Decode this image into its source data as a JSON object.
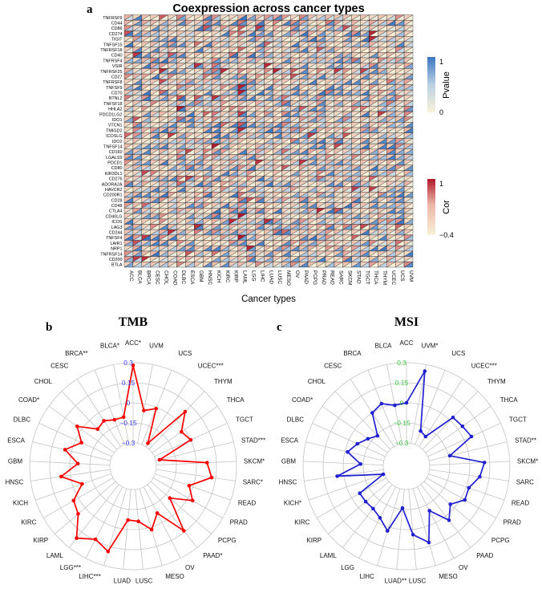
{
  "panels": {
    "a": "a",
    "b": "b",
    "c": "c"
  },
  "chart_data": [
    {
      "type": "heatmap",
      "panel": "a",
      "title": "Coexpression across cancer types",
      "xlabel": "Cancer types",
      "cell_style": "diagonal-split: upper-left triangle = Cor (red scale), lower-right triangle = Pvalue (blue scale)",
      "genes": [
        "TNFRSF9",
        "CD44",
        "CD86",
        "CD274",
        "TIGIT",
        "TNFSF15",
        "TNFRSF18",
        "CD40",
        "TNFRSF4",
        "VSIR",
        "TNFRSF25",
        "CD27",
        "TNFRSF8",
        "TNFSF9",
        "CD70",
        "BTNL2",
        "TNFSF18",
        "HHLA2",
        "PDCD1LG2",
        "IDO1",
        "VTCN1",
        "TMIGD2",
        "ICOSLG",
        "IDO2",
        "TNFSF14",
        "CD160",
        "LGALS9",
        "PDCD1",
        "CD80",
        "KIR3DL1",
        "CD276",
        "ADORA2A",
        "HAVCR2",
        "CD200R1",
        "CD28",
        "CD48",
        "CTLA4",
        "CD40LG",
        "ICOS",
        "LAG3",
        "CD244",
        "TNFSF4",
        "LAIR1",
        "NRP1",
        "TNFRSF14",
        "CD200",
        "BTLA"
      ],
      "cancer_types": [
        "ACC",
        "BLCA",
        "BRCA",
        "CESC",
        "CHOL",
        "COAD",
        "DLBC",
        "ESCA",
        "GBM",
        "HNSC",
        "KICH",
        "KIRC",
        "KIRP",
        "LAML",
        "LGG",
        "LIHC",
        "LUAD",
        "LUSC",
        "MESO",
        "OV",
        "PAAD",
        "PCPG",
        "PRAD",
        "READ",
        "SARC",
        "SKCM",
        "STAD",
        "TGCT",
        "THCA",
        "THYM",
        "UCEC",
        "UCS",
        "UVM"
      ],
      "cor_range": [
        -0.4,
        1
      ],
      "pvalue_range": [
        0,
        1
      ],
      "cell_seed": 20,
      "col_cor_bias": {
        "LAML": 0.22,
        "KICH": 0.1,
        "CHOL": 0.05,
        "DLBC": 0.05
      },
      "hotspots": [
        [
          "TNFSF9",
          "LAML",
          0.97
        ],
        [
          "CD70",
          "LAML",
          0.97
        ],
        [
          "PDCD1LG2",
          "LAML",
          0.85
        ],
        [
          "TNFRSF25",
          "LAML",
          0.55
        ],
        [
          "VSIR",
          "KICH",
          0.6
        ],
        [
          "CD28",
          "LAML",
          0.6
        ],
        [
          "TNFSF9",
          "KIRC",
          0.5
        ],
        [
          "CD200R1",
          "LAML",
          0.6
        ],
        [
          "BTNL2",
          "BRCA",
          0.5
        ],
        [
          "TNFSF18",
          "CESC",
          0.55
        ],
        [
          "HHLA2",
          "LAML",
          0.5
        ]
      ],
      "legend_pvalue": {
        "label": "Pvalue",
        "tick_max": "1",
        "tick_min": "0",
        "color_max": "#3B76C0",
        "color_mid": "#BBD1E4",
        "color_min": "#F9F2D8"
      },
      "legend_cor": {
        "label": "Cor",
        "tick_max": "1",
        "tick_min": "−0.4",
        "color_max": "#B2182B",
        "color_mid": "#ECB4A6",
        "color_min": "#F9F2D8"
      }
    },
    {
      "type": "radar",
      "panel": "b",
      "title": "TMB",
      "line_color": "#F80000",
      "tick_label_color": "#3E3EF0",
      "grid_color": "#C3C3C3",
      "axis_min": -0.3,
      "axis_max": 0.3,
      "tick_values": [
        0.3,
        0.15,
        0,
        -0.15,
        -0.3
      ],
      "tick_labels": [
        "0.3",
        "0.15",
        "0",
        "−0.15",
        "−0.3"
      ],
      "categories": [
        "ACC*",
        "UVM",
        "UCS",
        "UCEC***",
        "THYM",
        "THCA",
        "TGCT",
        "STAD***",
        "SKCM*",
        "SARC*",
        "READ",
        "PRAD",
        "PCPG",
        "PAAD*",
        "OV",
        "MESO",
        "LUSC",
        "LUAD",
        "LIHC***",
        "LGG***",
        "LAML",
        "KIRP",
        "KIRC",
        "KICH",
        "HNSC",
        "GBM",
        "ESCA",
        "DLBC",
        "COAD*",
        "CHOL",
        "CESC",
        "BRCA**",
        "BLCA*"
      ],
      "values": [
        0.28,
        -0.05,
        -0.01,
        -0.27,
        0.09,
        -0.03,
        0.0,
        -0.27,
        0.08,
        0.12,
        -0.03,
        0.04,
        -0.11,
        0.14,
        -0.08,
        0.02,
        -0.06,
        -0.07,
        0.19,
        0.14,
        0.21,
        0.07,
        0.04,
        -0.07,
        0.07,
        -0.06,
        0.05,
        -0.05,
        0.04,
        -0.09,
        -0.07,
        -0.1,
        -0.1
      ]
    },
    {
      "type": "radar",
      "panel": "c",
      "title": "MSI",
      "line_color": "#2020D0",
      "tick_label_color": "#3DC73D",
      "grid_color": "#C3C3C3",
      "axis_min": -0.3,
      "axis_max": 0.3,
      "tick_values": [
        0.3,
        0.15,
        0,
        -0.15,
        -0.3
      ],
      "tick_labels": [
        "0.3",
        "0.15",
        "0",
        "−0.15",
        "−0.3"
      ],
      "categories": [
        "ACC",
        "UVM*",
        "UCS",
        "UCEC***",
        "THYM",
        "THCA",
        "TGCT",
        "STAD**",
        "SKCM*",
        "SARC",
        "READ",
        "PRAD",
        "PCPG",
        "PAAD",
        "OV",
        "MESO",
        "LUSC",
        "LUAD**",
        "LIHC",
        "LGG",
        "LAML",
        "KIRP",
        "KIRC",
        "KICH*",
        "HNSC",
        "GBM",
        "ESCA",
        "DLBC",
        "COAD*",
        "CHOL",
        "CESC",
        "BRCA",
        "BLCA"
      ],
      "values": [
        0.0,
        0.25,
        -0.19,
        -0.21,
        0.03,
        0.04,
        0.06,
        -0.14,
        0.11,
        0.08,
        0.02,
        0.03,
        -0.04,
        0.04,
        -0.1,
        0.12,
        0.04,
        -0.16,
        0.03,
        -0.04,
        -0.07,
        -0.07,
        -0.07,
        -0.29,
        0.05,
        -0.13,
        -0.02,
        -0.07,
        -0.12,
        -0.16,
        0.0,
        0.03,
        -0.01
      ]
    }
  ]
}
